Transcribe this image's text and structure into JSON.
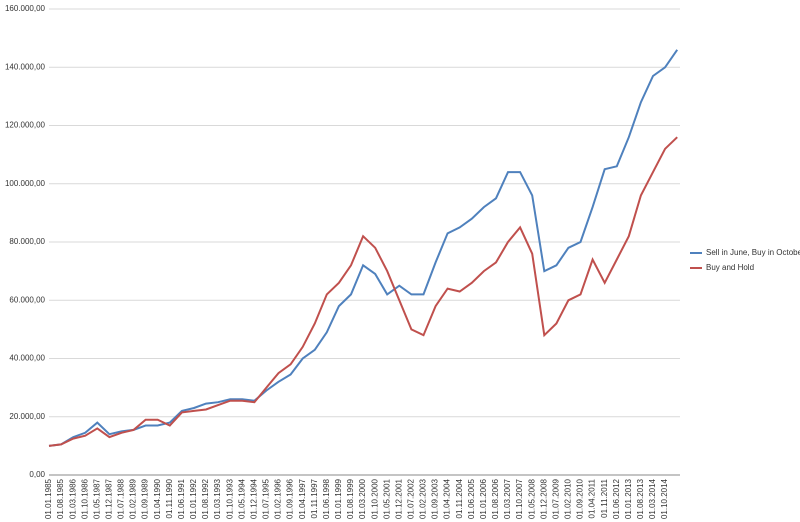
{
  "chart_data": {
    "type": "line",
    "categories": [
      "01.01.1985",
      "01.08.1985",
      "01.03.1986",
      "01.10.1986",
      "01.05.1987",
      "01.12.1987",
      "01.07.1988",
      "01.02.1989",
      "01.09.1989",
      "01.04.1990",
      "01.11.1990",
      "01.06.1991",
      "01.01.1992",
      "01.08.1992",
      "01.03.1993",
      "01.10.1993",
      "01.05.1994",
      "01.12.1994",
      "01.07.1995",
      "01.02.1996",
      "01.09.1996",
      "01.04.1997",
      "01.11.1997",
      "01.06.1998",
      "01.01.1999",
      "01.08.1999",
      "01.03.2000",
      "01.10.2000",
      "01.05.2001",
      "01.12.2001",
      "01.07.2002",
      "01.02.2003",
      "01.09.2003",
      "01.04.2004",
      "01.11.2004",
      "01.06.2005",
      "01.01.2006",
      "01.08.2006",
      "01.03.2007",
      "01.10.2007",
      "01.05.2008",
      "01.12.2008",
      "01.07.2009",
      "01.02.2010",
      "01.09.2010",
      "01.04.2011",
      "01.11.2011",
      "01.06.2012",
      "01.01.2013",
      "01.08.2013",
      "01.03.2014",
      "01.10.2014",
      null
    ],
    "series": [
      {
        "name": "Sell in June, Buy in October",
        "color": "#4f81bd",
        "values": [
          10000,
          10500,
          13000,
          14500,
          18000,
          14000,
          15000,
          15500,
          17000,
          17000,
          18000,
          22000,
          23000,
          24500,
          25000,
          26000,
          26000,
          25500,
          29000,
          32000,
          34500,
          40000,
          43000,
          49000,
          58000,
          62000,
          72000,
          69000,
          62000,
          65000,
          62000,
          62000,
          73000,
          83000,
          85000,
          88000,
          92000,
          95000,
          104000,
          104000,
          96000,
          70000,
          72000,
          78000,
          80000,
          92000,
          105000,
          106000,
          116000,
          128000,
          137000,
          140000,
          146000
        ]
      },
      {
        "name": "Buy and Hold",
        "color": "#c0504d",
        "values": [
          10000,
          10500,
          12500,
          13500,
          16000,
          13000,
          14500,
          15500,
          19000,
          19000,
          17000,
          21500,
          22000,
          22500,
          24000,
          25500,
          25500,
          25000,
          30000,
          35000,
          38000,
          44000,
          52000,
          62000,
          66000,
          72000,
          82000,
          78000,
          70000,
          60000,
          50000,
          48000,
          58000,
          64000,
          63000,
          66000,
          70000,
          73000,
          80000,
          85000,
          76000,
          48000,
          52000,
          60000,
          62000,
          74000,
          66000,
          74000,
          82000,
          96000,
          104000,
          112000,
          116000
        ]
      }
    ],
    "ylim": [
      0,
      160000
    ],
    "yticks": [
      {
        "value": 0,
        "label": "0,00"
      },
      {
        "value": 20000,
        "label": "20.000,00"
      },
      {
        "value": 40000,
        "label": "40.000,00"
      },
      {
        "value": 60000,
        "label": "60.000,00"
      },
      {
        "value": 80000,
        "label": "80.000,00"
      },
      {
        "value": 100000,
        "label": "100.000,00"
      },
      {
        "value": 120000,
        "label": "120.000,00"
      },
      {
        "value": 140000,
        "label": "140.000,00"
      },
      {
        "value": 160000,
        "label": "160.000,00"
      }
    ],
    "grid": true,
    "legend": "right"
  }
}
